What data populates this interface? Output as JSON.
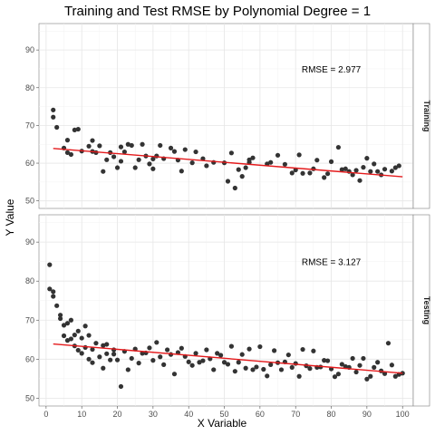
{
  "chart_data": {
    "type": "scatter",
    "title": "Training and Test RMSE by Polynomial Degree =  1",
    "xlabel": "X Variable",
    "ylabel": "Y Value",
    "xlim": [
      -2,
      103
    ],
    "ylim": [
      48,
      97
    ],
    "x_ticks": [
      0,
      10,
      20,
      30,
      40,
      50,
      60,
      70,
      80,
      90,
      100
    ],
    "y_ticks": [
      50,
      60,
      70,
      80,
      90
    ],
    "grid": true,
    "point_color": "#333333",
    "fit_color": "#e41a1c",
    "panels": [
      {
        "label": "Training",
        "annotation": "RMSE = 2.977",
        "annotation_pos": [
          80,
          85
        ],
        "fit_line": {
          "x": [
            2,
            100
          ],
          "y": [
            63.9,
            56.4
          ]
        },
        "points": {
          "x": [
            2,
            2,
            3,
            5,
            6,
            6,
            7,
            8,
            9,
            10,
            12,
            13,
            13,
            14,
            15,
            16,
            17,
            18,
            19,
            20,
            21,
            21,
            22,
            23,
            24,
            25,
            26,
            27,
            28,
            29,
            30,
            30,
            31,
            32,
            33,
            35,
            36,
            37,
            38,
            39,
            41,
            42,
            44,
            45,
            47,
            50,
            51,
            52,
            53,
            54,
            55,
            56,
            57,
            57,
            58,
            62,
            63,
            65,
            67,
            69,
            70,
            71,
            72,
            74,
            75,
            76,
            78,
            79,
            80,
            82,
            83,
            84,
            85,
            86,
            87,
            88,
            89,
            90,
            91,
            92,
            93,
            94,
            95,
            97,
            98,
            99
          ],
          "y": [
            74.1,
            72.2,
            69.5,
            64,
            62.8,
            66.1,
            62.3,
            68.8,
            69,
            63.2,
            64.5,
            66,
            63.1,
            62.8,
            64.6,
            57.8,
            60.9,
            62.8,
            61.7,
            58.8,
            60.5,
            64.3,
            63,
            65,
            64.7,
            58.8,
            60.9,
            65,
            61.9,
            59.8,
            58.5,
            61.1,
            61.9,
            64.7,
            61.2,
            64,
            63.1,
            60.8,
            57.9,
            63.6,
            60.1,
            63,
            61.2,
            59.3,
            60.2,
            60.1,
            55.2,
            62.7,
            53.4,
            58.3,
            56.5,
            58.8,
            60.2,
            60.9,
            61.4,
            59.8,
            60.2,
            62.1,
            59.7,
            57.4,
            58.2,
            62.2,
            57.3,
            57.4,
            58.5,
            60.8,
            56.2,
            57.2,
            60.4,
            64.2,
            58.3,
            58.5,
            57.8,
            56.9,
            58.1,
            55.4,
            58.9,
            61.3,
            57.8,
            59.8,
            57.8,
            56.9,
            58.4,
            57.9,
            58.8,
            59.3
          ]
        }
      },
      {
        "label": "Testing",
        "annotation": "RMSE = 3.127",
        "annotation_pos": [
          80,
          85
        ],
        "fit_line": {
          "x": [
            2,
            100
          ],
          "y": [
            63.9,
            56.4
          ]
        },
        "points": {
          "x": [
            1,
            1,
            2,
            2,
            3,
            4,
            4,
            5,
            5,
            6,
            6,
            7,
            7,
            8,
            8,
            9,
            9,
            10,
            10,
            11,
            11,
            12,
            12,
            13,
            13,
            14,
            15,
            16,
            16,
            17,
            17,
            18,
            19,
            19,
            20,
            21,
            22,
            23,
            24,
            25,
            26,
            27,
            28,
            29,
            30,
            31,
            32,
            33,
            34,
            35,
            36,
            37,
            38,
            39,
            40,
            41,
            42,
            43,
            44,
            45,
            46,
            47,
            48,
            49,
            50,
            51,
            52,
            53,
            54,
            55,
            56,
            57,
            58,
            59,
            60,
            61,
            62,
            63,
            64,
            65,
            66,
            67,
            68,
            69,
            70,
            71,
            72,
            73,
            74,
            75,
            76,
            77,
            78,
            79,
            80,
            81,
            82,
            83,
            84,
            85,
            86,
            87,
            88,
            89,
            90,
            91,
            92,
            93,
            94,
            95,
            96,
            97,
            98,
            99,
            100
          ],
          "y": [
            84.2,
            78,
            77.3,
            76.1,
            73.7,
            71.3,
            70.4,
            68.7,
            66,
            69.2,
            64.8,
            65.2,
            70,
            63.4,
            66.2,
            62.3,
            67.2,
            61.5,
            65.4,
            68.5,
            63,
            60,
            66.1,
            59.1,
            62.5,
            64.1,
            60.6,
            63.5,
            57.7,
            61.4,
            63.8,
            59.8,
            61.3,
            62.4,
            59.8,
            53,
            62,
            57.3,
            60.2,
            62.6,
            59,
            61.5,
            61.6,
            62.9,
            59.7,
            64.3,
            60.6,
            58.6,
            62.4,
            61.2,
            56.2,
            61.7,
            62.8,
            60.7,
            59.3,
            58.4,
            61.5,
            59.2,
            59.6,
            62.4,
            60.1,
            57.3,
            61.5,
            61,
            59.2,
            58.7,
            63.3,
            56.9,
            59.2,
            61.2,
            57.7,
            62.6,
            57.3,
            58,
            63.2,
            57.4,
            55.7,
            58.6,
            62.2,
            59.1,
            57.3,
            59.3,
            61.1,
            57.9,
            58.9,
            55.6,
            62.5,
            58.3,
            57.6,
            62.1,
            57.9,
            58,
            59.7,
            59.6,
            57.5,
            55.5,
            56.2,
            58.7,
            58.1,
            57.9,
            60.2,
            56.7,
            58.4,
            60.2,
            54.9,
            55.6,
            57.9,
            59.2,
            57,
            56.3,
            64.1,
            58.5,
            55.6,
            56.1,
            56.4
          ]
        }
      }
    ]
  }
}
